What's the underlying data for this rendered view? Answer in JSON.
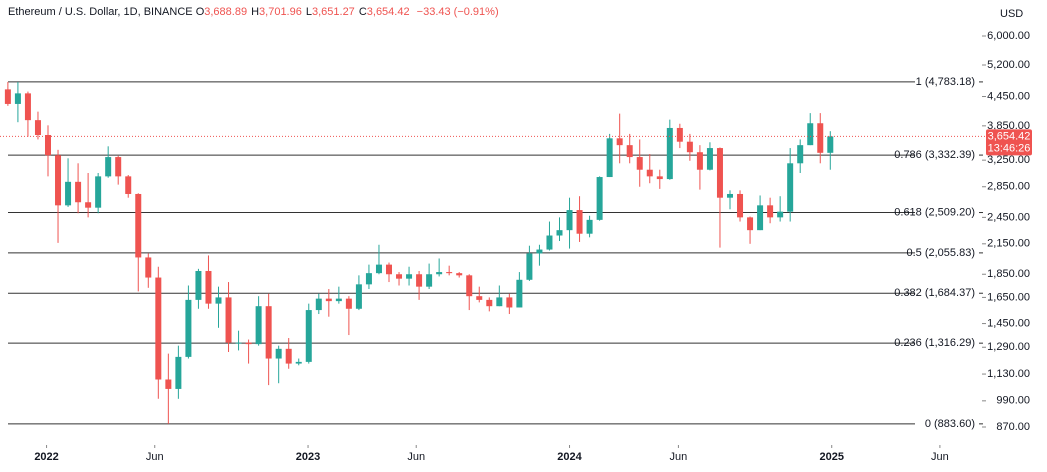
{
  "chart_data": {
    "type": "candlestick",
    "title": "Ethereum / U.S. Dollar, 1D, BINANCE",
    "ohlc": [
      {
        "key": "O",
        "text": "3,688.89"
      },
      {
        "key": "H",
        "text": "3,701.96"
      },
      {
        "key": "L",
        "text": "3,651.27"
      },
      {
        "key": "C",
        "text": "3,654.42"
      }
    ],
    "change": "−33.43 (−0.91%)",
    "y_axis_label": "USD",
    "log_scale": true,
    "grid": false,
    "up_color": "#26a69a",
    "down_color": "#ef5350",
    "fib_color": "#333333",
    "x": [
      "2021-11-08",
      "2021-11-22",
      "2021-12-06",
      "2021-12-20",
      "2022-01-03",
      "2022-01-17",
      "2022-01-31",
      "2022-02-14",
      "2022-02-28",
      "2022-03-14",
      "2022-03-28",
      "2022-04-11",
      "2022-04-25",
      "2022-05-09",
      "2022-05-23",
      "2022-06-06",
      "2022-06-20",
      "2022-07-04",
      "2022-07-18",
      "2022-08-01",
      "2022-08-15",
      "2022-08-29",
      "2022-09-12",
      "2022-09-26",
      "2022-10-10",
      "2022-10-24",
      "2022-11-07",
      "2022-11-21",
      "2022-12-05",
      "2022-12-19",
      "2023-01-02",
      "2023-01-16",
      "2023-01-30",
      "2023-02-13",
      "2023-02-27",
      "2023-03-13",
      "2023-03-27",
      "2023-04-10",
      "2023-04-24",
      "2023-05-08",
      "2023-05-22",
      "2023-06-05",
      "2023-06-19",
      "2023-07-03",
      "2023-07-17",
      "2023-07-31",
      "2023-08-14",
      "2023-08-28",
      "2023-09-11",
      "2023-09-25",
      "2023-10-09",
      "2023-10-23",
      "2023-11-06",
      "2023-11-20",
      "2023-12-04",
      "2023-12-18",
      "2024-01-01",
      "2024-01-15",
      "2024-01-29",
      "2024-02-12",
      "2024-02-26",
      "2024-03-11",
      "2024-03-25",
      "2024-04-08",
      "2024-04-22",
      "2024-05-06",
      "2024-05-20",
      "2024-06-03",
      "2024-06-17",
      "2024-07-01",
      "2024-07-15",
      "2024-07-29",
      "2024-08-12",
      "2024-08-26",
      "2024-09-09",
      "2024-09-23",
      "2024-10-07",
      "2024-10-21",
      "2024-11-04",
      "2024-11-18",
      "2024-12-02",
      "2024-12-16",
      "2024-12-30"
    ],
    "open": [
      4610,
      4290,
      4520,
      3960,
      3680,
      3330,
      2600,
      2920,
      2640,
      2570,
      3000,
      3300,
      3000,
      2750,
      2010,
      1820,
      1100,
      1050,
      1230,
      1630,
      1880,
      1600,
      1650,
      1320,
      1320,
      1310,
      1580,
      1220,
      1280,
      1190,
      1200,
      1550,
      1640,
      1620,
      1640,
      1560,
      1760,
      1860,
      1940,
      1850,
      1810,
      1850,
      1740,
      1850,
      1870,
      1860,
      1840,
      1660,
      1630,
      1580,
      1650,
      1570,
      1800,
      2050,
      2090,
      2240,
      2300,
      2540,
      2260,
      2420,
      2990,
      3620,
      3500,
      3300,
      3100,
      3000,
      2960,
      3810,
      3560,
      3380,
      3100,
      3450,
      2700,
      2750,
      2450,
      2300,
      2600,
      2450,
      2520,
      3200,
      3500,
      3900,
      3370
    ],
    "high": [
      4783,
      4780,
      4560,
      4130,
      3860,
      3420,
      3280,
      3200,
      3050,
      3050,
      3480,
      3320,
      3020,
      2760,
      2050,
      1920,
      1250,
      1300,
      1750,
      1900,
      2030,
      1740,
      1780,
      1400,
      1340,
      1660,
      1680,
      1300,
      1350,
      1220,
      1600,
      1680,
      1720,
      1740,
      1660,
      1840,
      1940,
      2140,
      1960,
      1870,
      1920,
      1880,
      1950,
      2000,
      1930,
      1870,
      1850,
      1740,
      1650,
      1750,
      1680,
      1870,
      2130,
      2140,
      2400,
      2450,
      2700,
      2720,
      2470,
      3000,
      3700,
      4090,
      3700,
      3600,
      3350,
      3100,
      3970,
      3890,
      3700,
      3500,
      3550,
      3460,
      2800,
      2800,
      2460,
      2730,
      2700,
      2720,
      3450,
      3600,
      4100,
      4100,
      3750
    ],
    "low": [
      4250,
      3920,
      3650,
      3600,
      3000,
      2160,
      2580,
      2500,
      2450,
      2500,
      2980,
      2880,
      2700,
      1700,
      1730,
      1000,
      883.6,
      1000,
      1220,
      1560,
      1560,
      1420,
      1260,
      1270,
      1190,
      1300,
      1070,
      1080,
      1160,
      1180,
      1190,
      1520,
      1500,
      1600,
      1370,
      1550,
      1720,
      1850,
      1780,
      1750,
      1750,
      1630,
      1720,
      1830,
      1840,
      1820,
      1550,
      1610,
      1540,
      1580,
      1520,
      1570,
      1790,
      1930,
      2080,
      2180,
      2100,
      2170,
      2220,
      2410,
      2990,
      3200,
      3200,
      2850,
      2900,
      2820,
      2950,
      3450,
      3240,
      2810,
      3090,
      2110,
      2550,
      2400,
      2150,
      2300,
      2380,
      2400,
      2400,
      3050,
      3500,
      3200,
      3100
    ],
    "close": [
      4290,
      4520,
      3960,
      3680,
      3330,
      2600,
      2920,
      2640,
      2570,
      3000,
      3300,
      3000,
      2750,
      2010,
      1820,
      1100,
      1050,
      1230,
      1630,
      1880,
      1600,
      1650,
      1320,
      1320,
      1310,
      1580,
      1220,
      1280,
      1190,
      1200,
      1550,
      1640,
      1620,
      1640,
      1560,
      1760,
      1860,
      1940,
      1850,
      1810,
      1850,
      1740,
      1850,
      1870,
      1860,
      1840,
      1660,
      1630,
      1580,
      1650,
      1570,
      1800,
      2050,
      2090,
      2240,
      2300,
      2540,
      2260,
      2420,
      2990,
      3620,
      3500,
      3300,
      3100,
      3000,
      2960,
      3810,
      3560,
      3380,
      3100,
      3450,
      2700,
      2750,
      2450,
      2300,
      2600,
      2450,
      2520,
      3200,
      3500,
      3900,
      3370,
      3654.42
    ],
    "xlim": [
      "2021-10-28",
      "2025-07-20"
    ],
    "xticks": [
      {
        "value": "2022-01-01",
        "label": "2022"
      },
      {
        "value": "2022-06-01",
        "label": "Jun"
      },
      {
        "value": "2023-01-01",
        "label": "2023"
      },
      {
        "value": "2023-06-01",
        "label": "Jun"
      },
      {
        "value": "2024-01-01",
        "label": "2024"
      },
      {
        "value": "2024-06-01",
        "label": "Jun"
      },
      {
        "value": "2025-01-01",
        "label": "2025"
      },
      {
        "value": "2025-06-01",
        "label": "Jun"
      }
    ],
    "ylim": [
      796,
      7168
    ],
    "yticks": [
      {
        "value": 6000,
        "label": "6,000.00"
      },
      {
        "value": 5200,
        "label": "5,200.00"
      },
      {
        "value": 4450,
        "label": "4,450.00"
      },
      {
        "value": 3850,
        "label": "3,850.00"
      },
      {
        "value": 3250,
        "label": "3,250.00"
      },
      {
        "value": 2850,
        "label": "2,850.00"
      },
      {
        "value": 2450,
        "label": "2,450.00"
      },
      {
        "value": 2150,
        "label": "2,150.00"
      },
      {
        "value": 1850,
        "label": "1,850.00"
      },
      {
        "value": 1650,
        "label": "1,650.00"
      },
      {
        "value": 1450,
        "label": "1,450.00"
      },
      {
        "value": 1290,
        "label": "1,290.00"
      },
      {
        "value": 1130,
        "label": "1,130.00"
      },
      {
        "value": 990,
        "label": "990.00"
      },
      {
        "value": 870,
        "label": "870.00"
      }
    ],
    "fib_levels": [
      {
        "value": 4783.18,
        "label": "1 (4,783.18)"
      },
      {
        "value": 3332.39,
        "label": "0.786 (3,332.39)"
      },
      {
        "value": 2509.2,
        "label": "0.618 (2,509.20)"
      },
      {
        "value": 2055.83,
        "label": "0.5 (2,055.83)"
      },
      {
        "value": 1684.37,
        "label": "0.382 (1,684.37)"
      },
      {
        "value": 1316.29,
        "label": "0.236 (1,316.29)"
      },
      {
        "value": 883.6,
        "label": "0 (883.60)"
      }
    ],
    "last_price": {
      "value": 3654.42,
      "label": "3,654.42"
    },
    "countdown": "13:46:26"
  }
}
